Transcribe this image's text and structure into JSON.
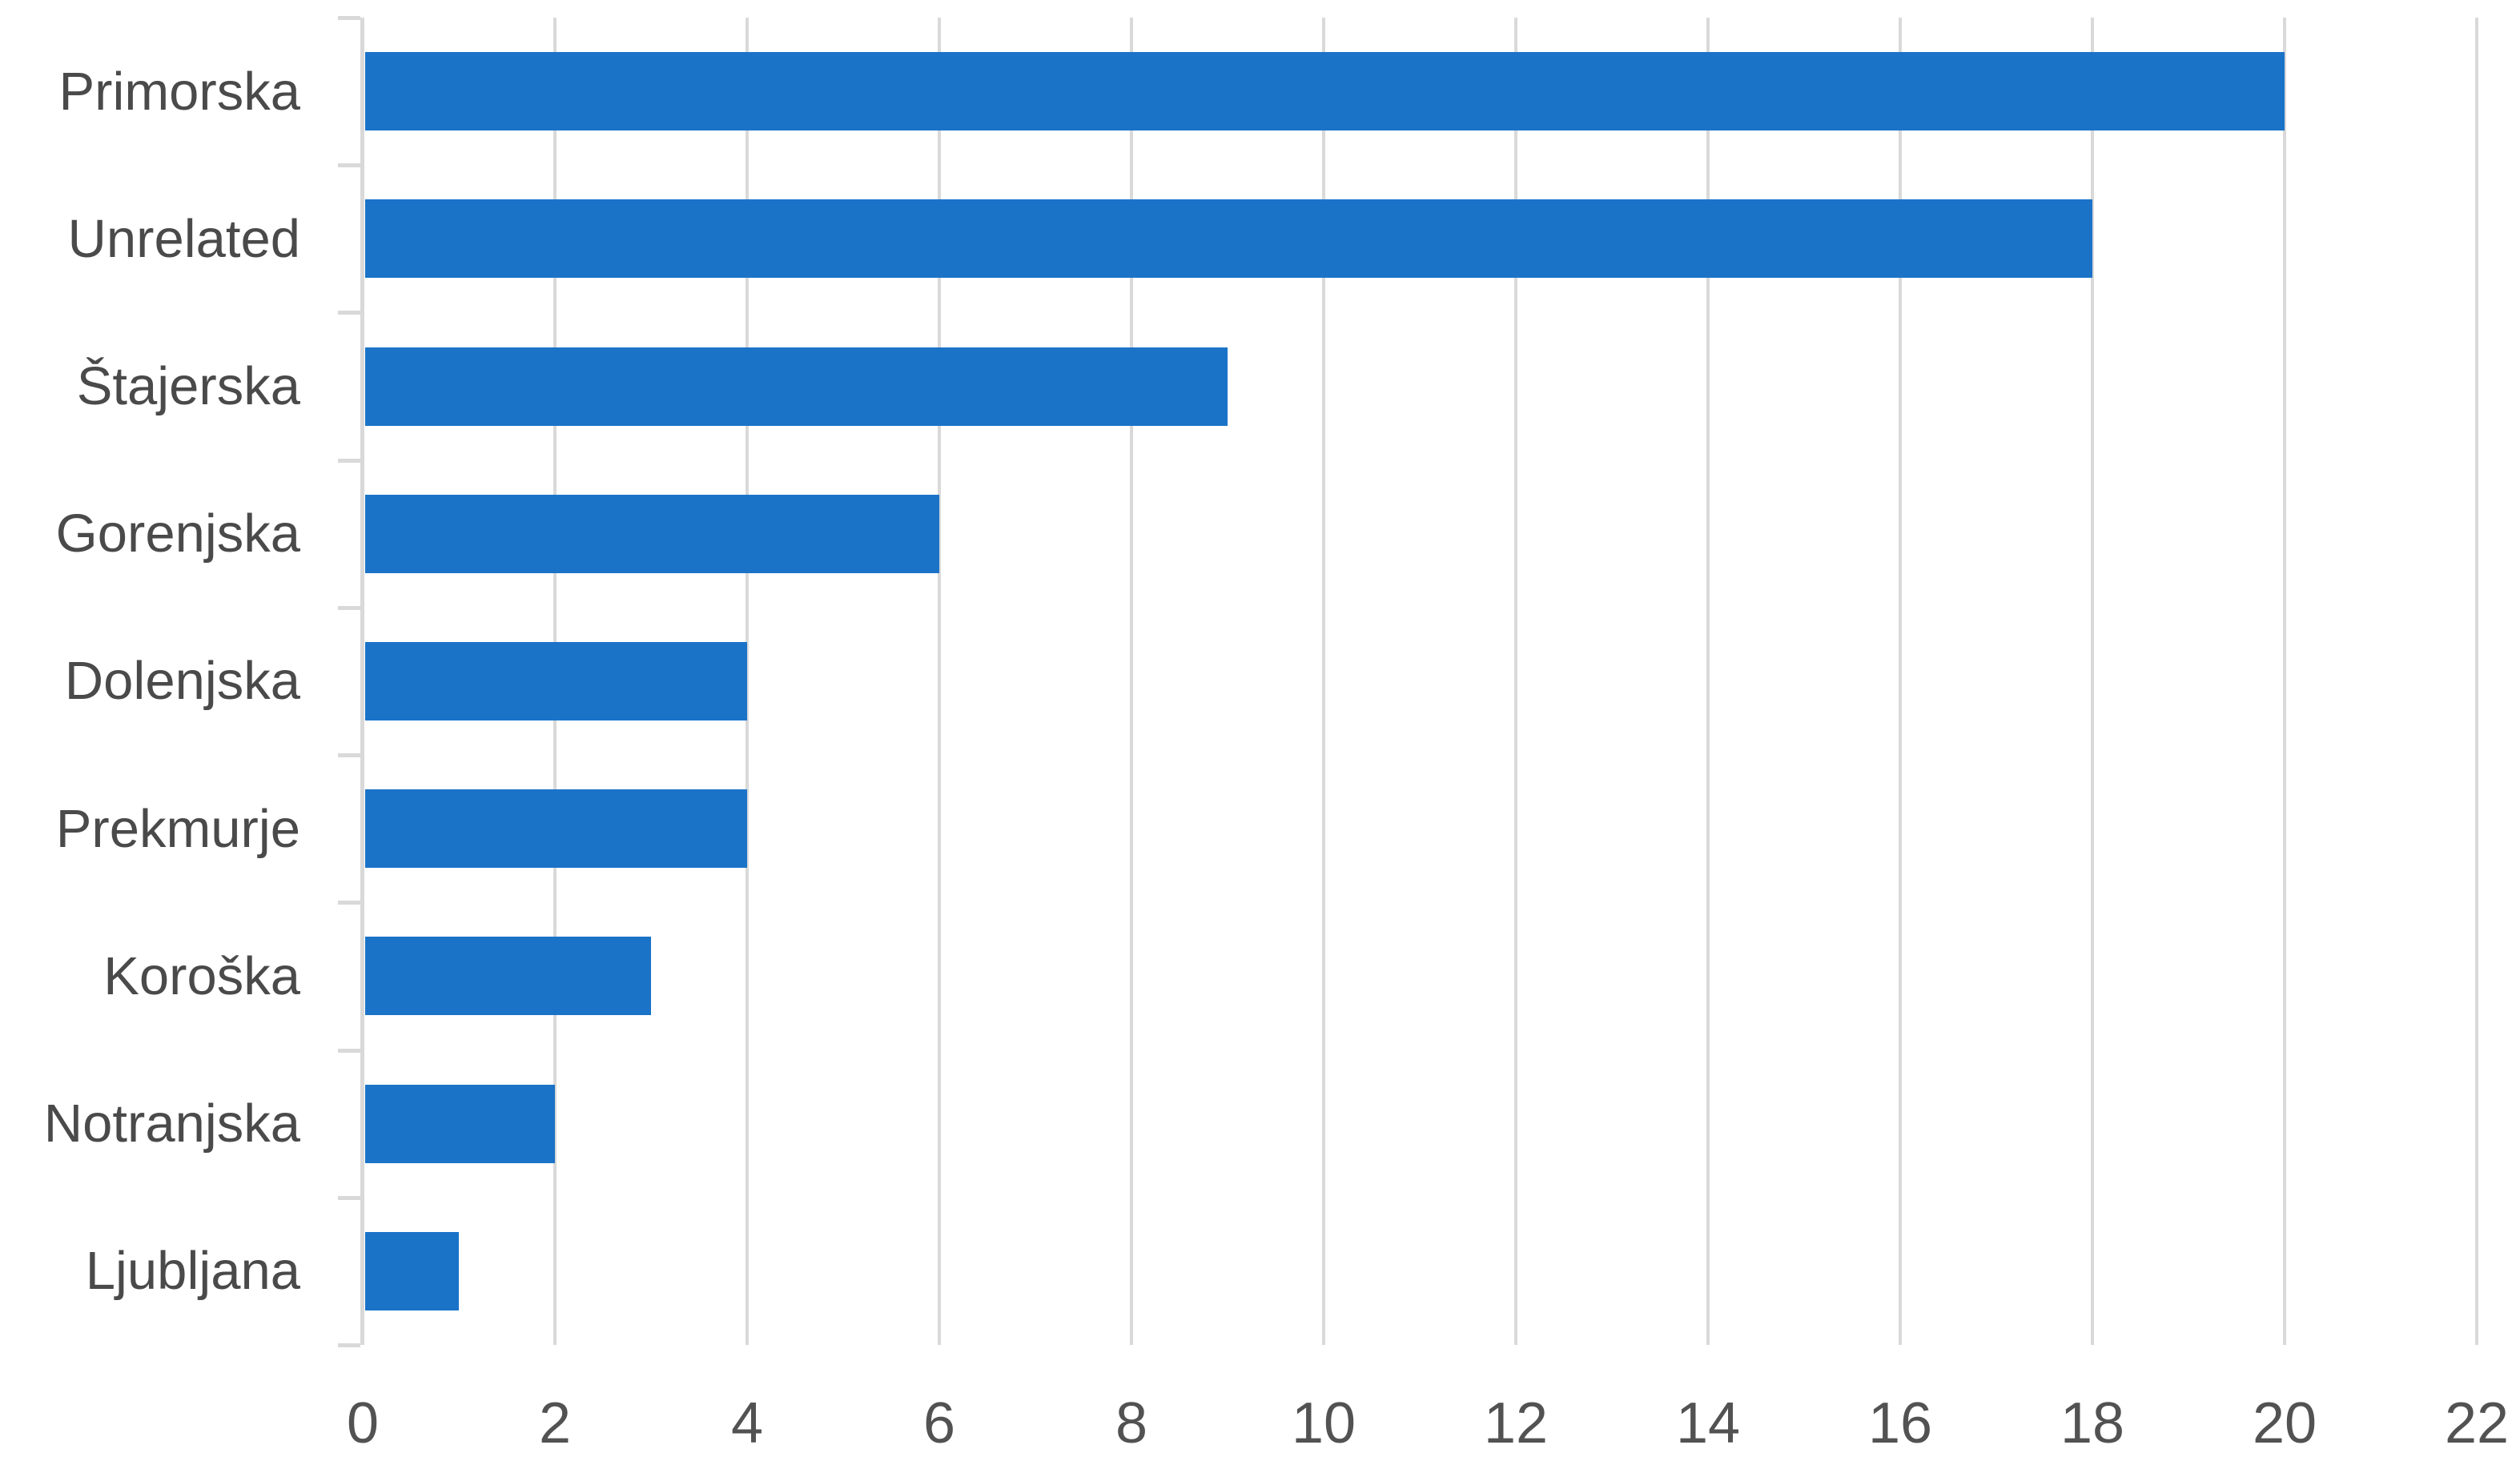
{
  "chart_data": {
    "type": "bar",
    "orientation": "horizontal",
    "title": "",
    "xlabel": "",
    "ylabel": "",
    "categories": [
      "Primorska",
      "Unrelated",
      "Štajerska",
      "Gorenjska",
      "Dolenjska",
      "Prekmurje",
      "Koroška",
      "Notranjska",
      "Ljubljana"
    ],
    "values": [
      20,
      18,
      9,
      6,
      4,
      4,
      3,
      2,
      1
    ],
    "xlim": [
      0,
      22
    ],
    "x_ticks": [
      0,
      2,
      4,
      6,
      8,
      10,
      12,
      14,
      16,
      18,
      20,
      22
    ],
    "grid": true,
    "legend": false,
    "colors": {
      "bar": "#1B73C8",
      "gridline": "#D9D9D9",
      "axis_line": "#D9D9D9",
      "category_label": "#4A4A4A",
      "tick_label": "#525252",
      "background": "#FFFFFF"
    }
  }
}
